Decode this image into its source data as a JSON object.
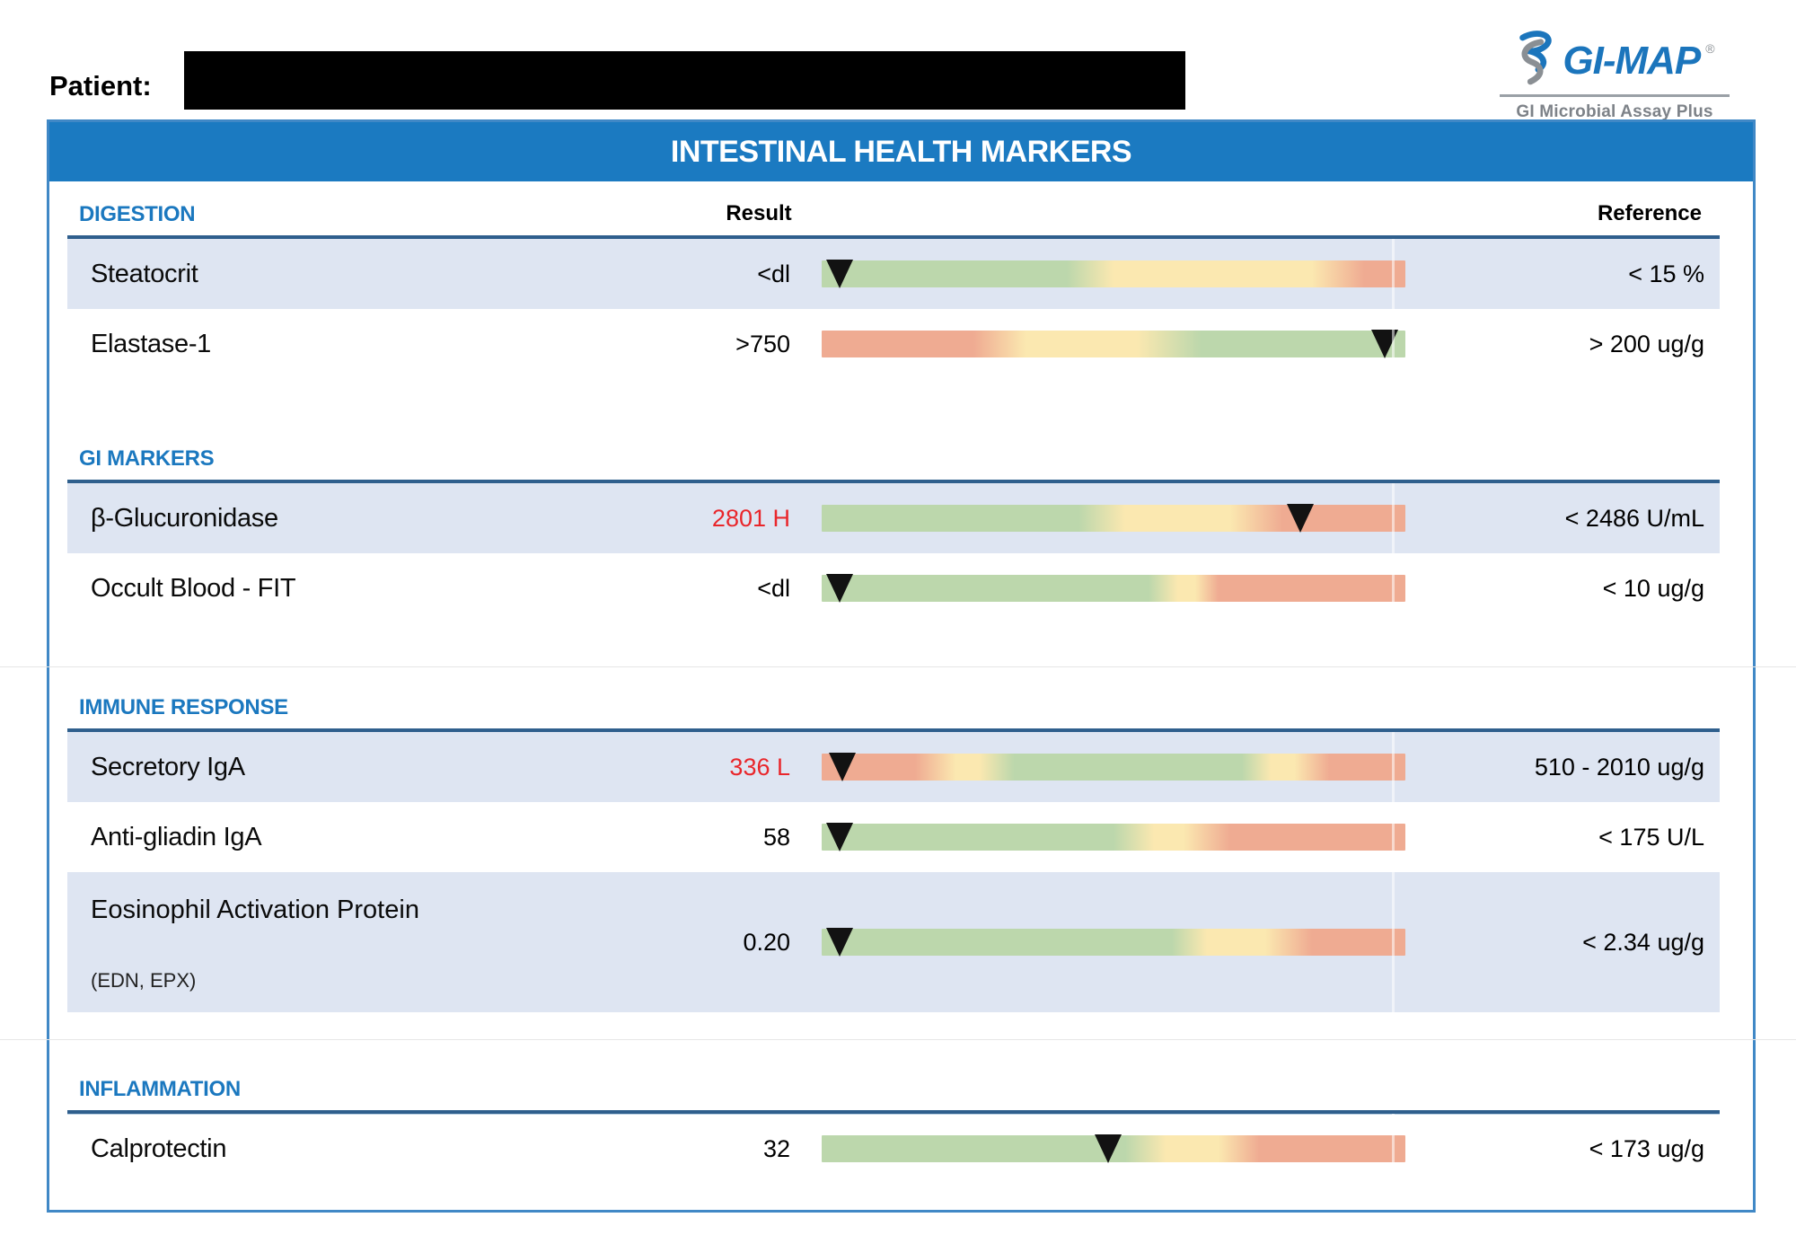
{
  "page": {
    "patient_label": "Patient:"
  },
  "logo": {
    "brand": "GI-MAP",
    "registered": "®",
    "subtitle": "GI Microbial Assay Plus",
    "icon": "dna-swirl-icon"
  },
  "title": "INTESTINAL HEALTH MARKERS",
  "columns": {
    "result": "Result",
    "reference": "Reference"
  },
  "bar_colors": {
    "green": "#bcd7ac",
    "yellow": "#fbe8b0",
    "salmon": "#efab92"
  },
  "accent": {
    "header_blue": "#1b7ac1",
    "section_blue": "#1b78bf",
    "rule_navy": "#2f5f8d",
    "border_blue": "#4088c6",
    "result_flag_red": "#e9262b",
    "row_shade": "#dee5f2"
  },
  "sections": [
    {
      "label": "DIGESTION",
      "show_column_headers": true,
      "rows": [
        {
          "name": "Steatocrit",
          "result": "<dl",
          "flag": null,
          "reference": "< 15 %",
          "shaded": true,
          "triangle_pct": 3,
          "stops": [
            {
              "c": "green",
              "p": 0
            },
            {
              "c": "green",
              "p": 42
            },
            {
              "c": "yellow",
              "p": 50
            },
            {
              "c": "yellow",
              "p": 84
            },
            {
              "c": "salmon",
              "p": 93
            },
            {
              "c": "salmon",
              "p": 100
            }
          ]
        },
        {
          "name": "Elastase-1",
          "result": ">750",
          "flag": null,
          "reference": "> 200 ug/g",
          "shaded": false,
          "triangle_pct": 96.5,
          "stops": [
            {
              "c": "salmon",
              "p": 0
            },
            {
              "c": "salmon",
              "p": 26
            },
            {
              "c": "yellow",
              "p": 35
            },
            {
              "c": "yellow",
              "p": 54
            },
            {
              "c": "green",
              "p": 65
            },
            {
              "c": "green",
              "p": 100
            }
          ]
        }
      ]
    },
    {
      "label": "GI MARKERS",
      "show_column_headers": false,
      "rows": [
        {
          "name": "β-Glucuronidase",
          "result": "2801 H",
          "flag": "high",
          "reference": "< 2486 U/mL",
          "shaded": true,
          "triangle_pct": 82,
          "stops": [
            {
              "c": "green",
              "p": 0
            },
            {
              "c": "green",
              "p": 44
            },
            {
              "c": "yellow",
              "p": 52
            },
            {
              "c": "yellow",
              "p": 70
            },
            {
              "c": "salmon",
              "p": 79
            },
            {
              "c": "salmon",
              "p": 100
            }
          ]
        },
        {
          "name": "Occult Blood - FIT",
          "result": "<dl",
          "flag": null,
          "reference": "< 10 ug/g",
          "shaded": false,
          "triangle_pct": 3,
          "stops": [
            {
              "c": "green",
              "p": 0
            },
            {
              "c": "green",
              "p": 56
            },
            {
              "c": "yellow",
              "p": 61
            },
            {
              "c": "yellow",
              "p": 64
            },
            {
              "c": "salmon",
              "p": 68
            },
            {
              "c": "salmon",
              "p": 100
            }
          ]
        }
      ]
    },
    {
      "label": "IMMUNE RESPONSE",
      "show_column_headers": false,
      "rows": [
        {
          "name": "Secretory IgA",
          "result": "336 L",
          "flag": "low",
          "reference": "510 - 2010 ug/g",
          "shaded": true,
          "triangle_pct": 3.5,
          "stops": [
            {
              "c": "salmon",
              "p": 0
            },
            {
              "c": "salmon",
              "p": 16
            },
            {
              "c": "yellow",
              "p": 23
            },
            {
              "c": "yellow",
              "p": 27
            },
            {
              "c": "green",
              "p": 33
            },
            {
              "c": "green",
              "p": 72
            },
            {
              "c": "yellow",
              "p": 77
            },
            {
              "c": "yellow",
              "p": 81
            },
            {
              "c": "salmon",
              "p": 87
            },
            {
              "c": "salmon",
              "p": 100
            }
          ]
        },
        {
          "name": "Anti-gliadin IgA",
          "result": "58",
          "flag": null,
          "reference": "< 175 U/L",
          "shaded": false,
          "triangle_pct": 3,
          "stops": [
            {
              "c": "green",
              "p": 0
            },
            {
              "c": "green",
              "p": 50
            },
            {
              "c": "yellow",
              "p": 57
            },
            {
              "c": "yellow",
              "p": 62
            },
            {
              "c": "salmon",
              "p": 70
            },
            {
              "c": "salmon",
              "p": 100
            }
          ]
        },
        {
          "name": "Eosinophil Activation Protein",
          "subname": "(EDN, EPX)",
          "result": "0.20",
          "flag": null,
          "reference": "< 2.34 ug/g",
          "shaded": true,
          "tall": true,
          "triangle_pct": 3,
          "stops": [
            {
              "c": "green",
              "p": 0
            },
            {
              "c": "green",
              "p": 60
            },
            {
              "c": "yellow",
              "p": 66
            },
            {
              "c": "yellow",
              "p": 76
            },
            {
              "c": "salmon",
              "p": 84
            },
            {
              "c": "salmon",
              "p": 100
            }
          ]
        }
      ]
    },
    {
      "label": "INFLAMMATION",
      "show_column_headers": false,
      "rows": [
        {
          "name": "Calprotectin",
          "result": "32",
          "flag": null,
          "reference": "< 173 ug/g",
          "shaded": false,
          "triangle_pct": 49,
          "stops": [
            {
              "c": "green",
              "p": 0
            },
            {
              "c": "green",
              "p": 52
            },
            {
              "c": "yellow",
              "p": 59
            },
            {
              "c": "yellow",
              "p": 68
            },
            {
              "c": "salmon",
              "p": 75
            },
            {
              "c": "salmon",
              "p": 100
            }
          ]
        }
      ]
    }
  ]
}
